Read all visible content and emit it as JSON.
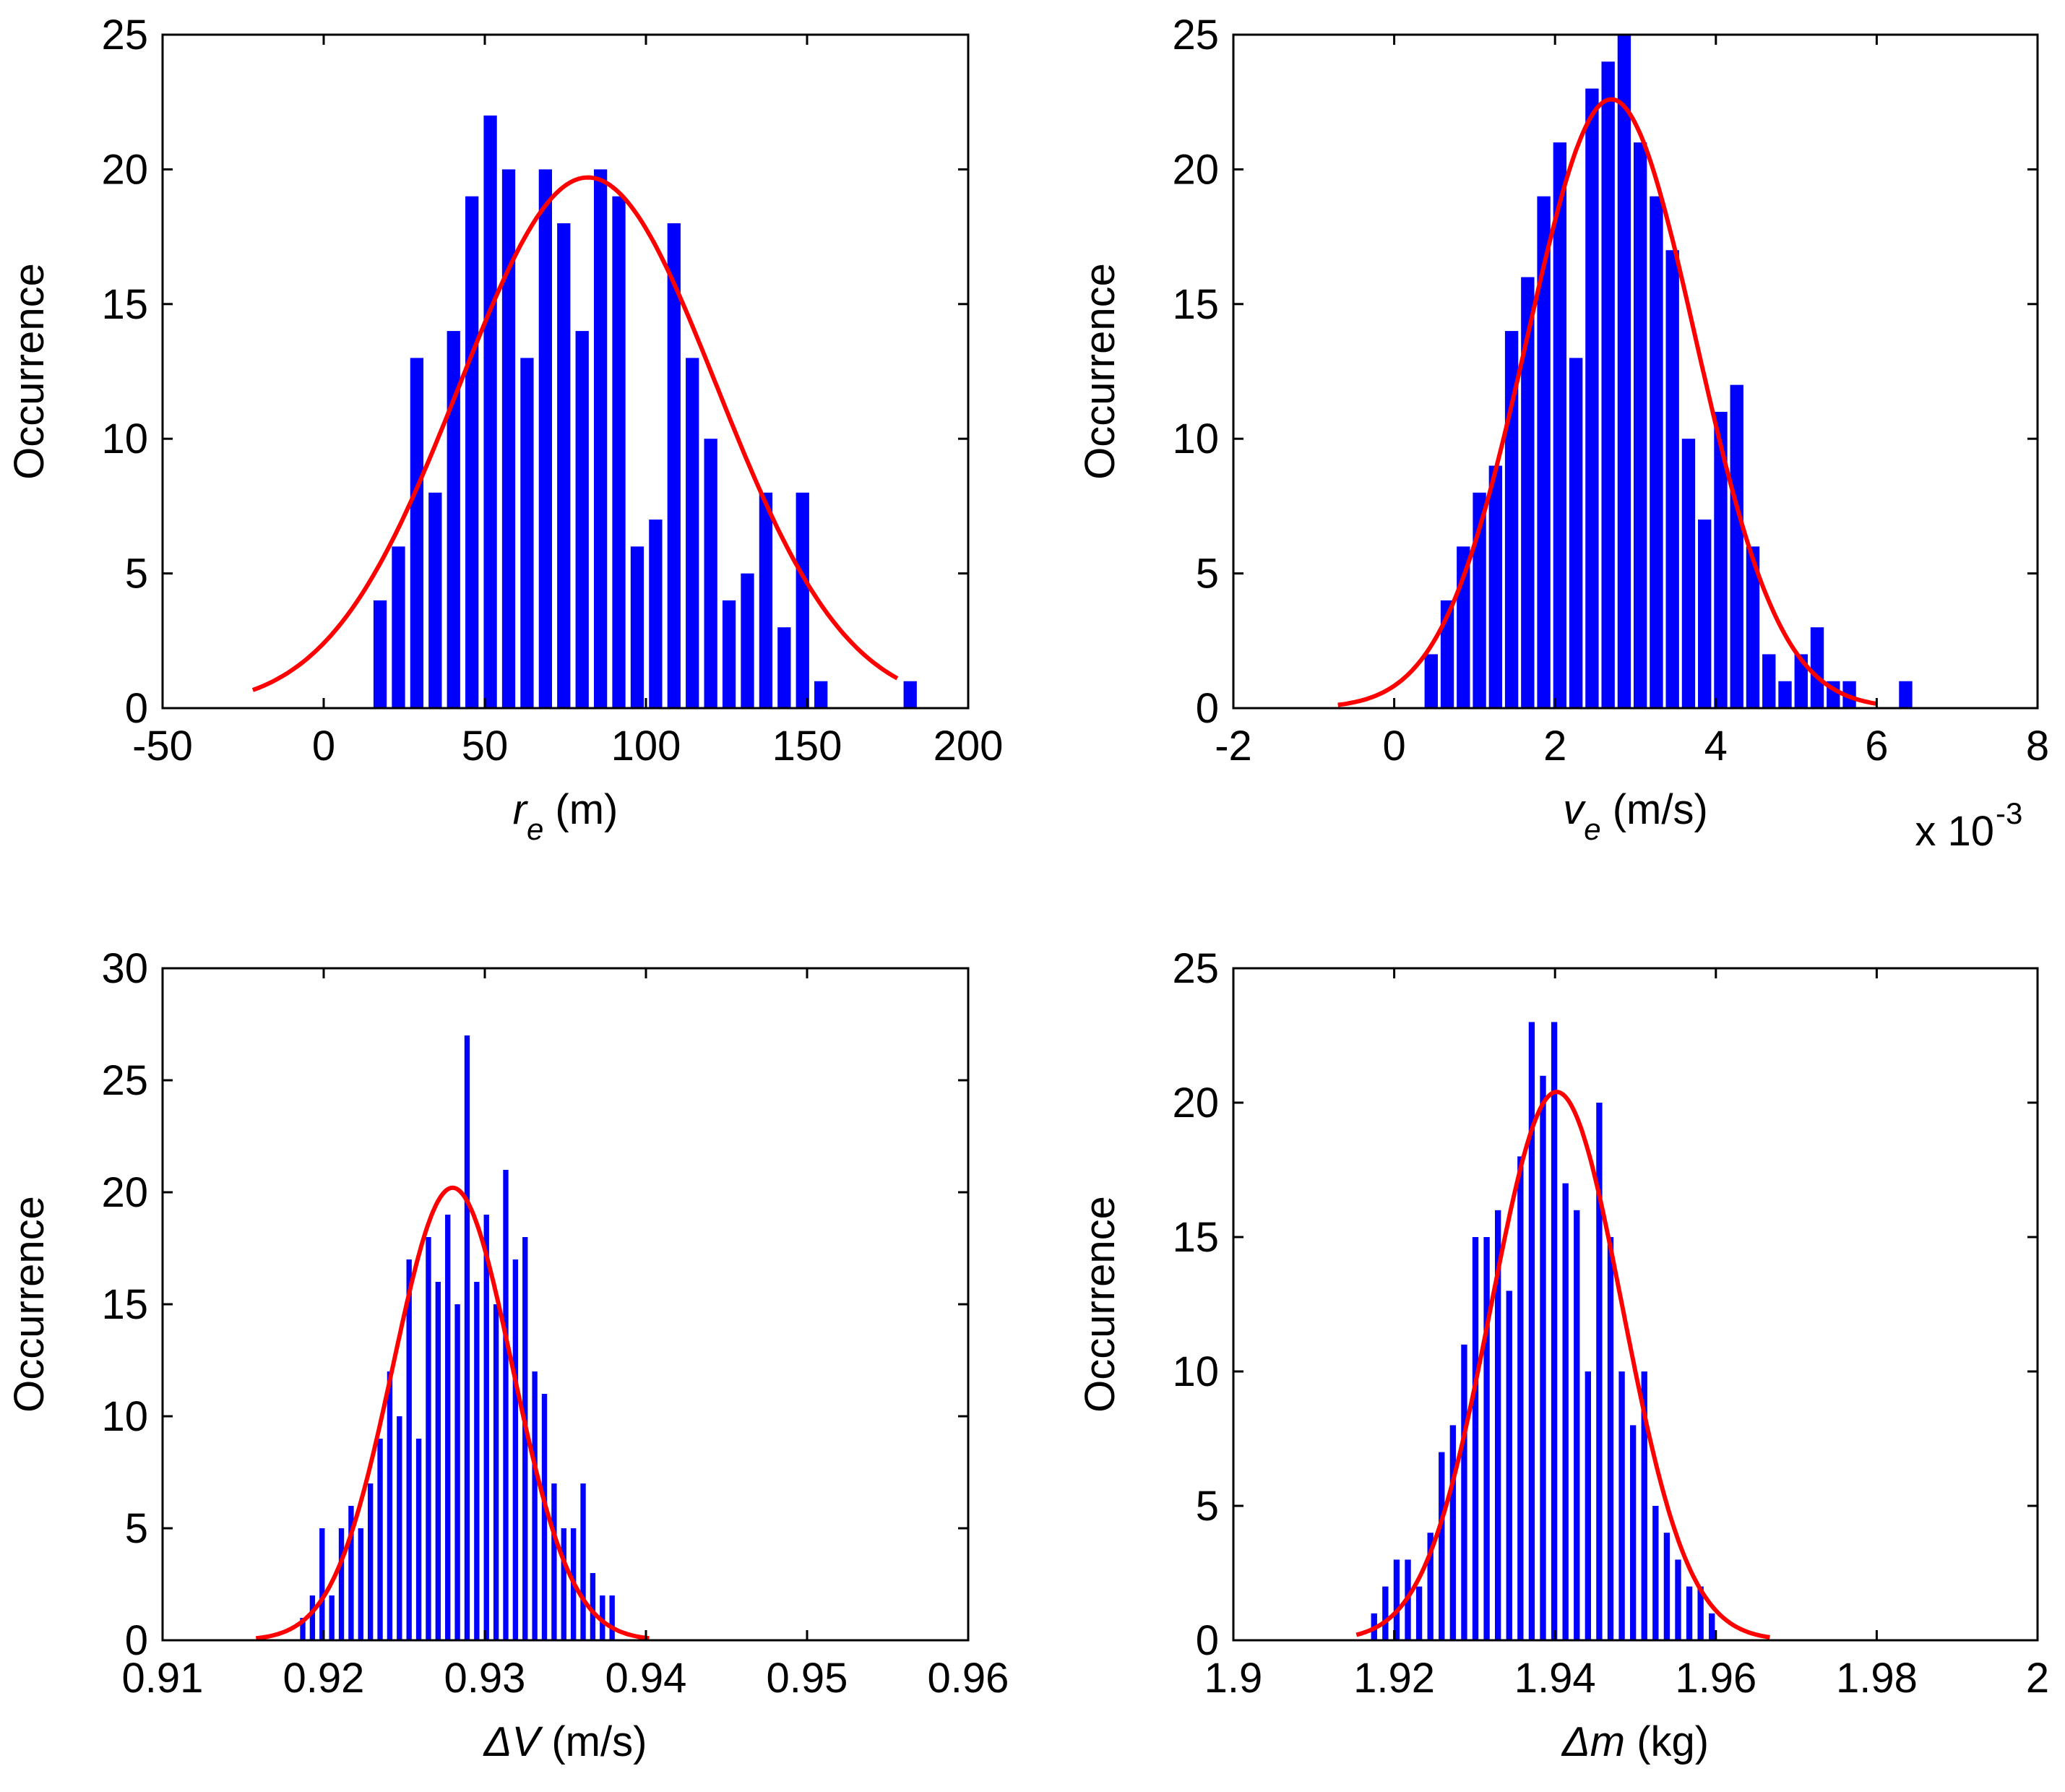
{
  "figure": {
    "bar_color": "#0000ff",
    "fit_color": "#ff0000",
    "axes_color": "#000000",
    "background": "#ffffff"
  },
  "chart_data": [
    {
      "id": "re",
      "type": "bar",
      "title": "",
      "xlabel_main": "r",
      "xlabel_sub": "e",
      "xlabel_rest": " (m)",
      "ylabel": "Occurrence",
      "xlim": [
        -50,
        200
      ],
      "ylim": [
        0,
        25
      ],
      "xticks": [
        -50,
        0,
        50,
        100,
        150,
        200
      ],
      "xtick_labels": [
        "-50",
        "0",
        "50",
        "100",
        "150",
        "200"
      ],
      "yticks": [
        0,
        5,
        10,
        15,
        20,
        25
      ],
      "ytick_labels": [
        "0",
        "5",
        "10",
        "15",
        "20",
        "25"
      ],
      "exponent_label": "",
      "bar_width": 4.1,
      "bar_centers": [
        17.5,
        23.2,
        28.9,
        34.6,
        40.3,
        46.0,
        51.7,
        57.4,
        63.1,
        68.8,
        74.5,
        80.2,
        85.9,
        91.6,
        97.3,
        103.0,
        108.7,
        114.4,
        120.1,
        125.8,
        131.5,
        137.2,
        142.9,
        148.6,
        154.3,
        160.0,
        182.0
      ],
      "bar_values": [
        4,
        6,
        13,
        8,
        14,
        19,
        22,
        20,
        13,
        20,
        18,
        14,
        20,
        19,
        6,
        7,
        18,
        13,
        10,
        4,
        5,
        8,
        3,
        8,
        1,
        0,
        1
      ],
      "fit": {
        "mean": 82,
        "sd": 40,
        "peak": 19.7,
        "xmin": -22,
        "xmax": 178
      }
    },
    {
      "id": "ve",
      "type": "bar",
      "title": "",
      "xlabel_main": "v",
      "xlabel_sub": "e",
      "xlabel_rest": " (m/s)",
      "ylabel": "Occurrence",
      "xlim": [
        -2,
        8
      ],
      "ylim": [
        0,
        25
      ],
      "xticks": [
        -2,
        0,
        2,
        4,
        6,
        8
      ],
      "xtick_labels": [
        "-2",
        "0",
        "2",
        "4",
        "6",
        "8"
      ],
      "yticks": [
        0,
        5,
        10,
        15,
        20,
        25
      ],
      "ytick_labels": [
        "0",
        "5",
        "10",
        "15",
        "20",
        "25"
      ],
      "exponent_label": "x 10",
      "exponent_power": "-3",
      "bar_width": 0.165,
      "bar_centers": [
        0.46,
        0.66,
        0.86,
        1.06,
        1.26,
        1.46,
        1.66,
        1.86,
        2.06,
        2.26,
        2.46,
        2.66,
        2.86,
        3.06,
        3.26,
        3.46,
        3.66,
        3.86,
        4.06,
        4.26,
        4.46,
        4.66,
        4.86,
        5.06,
        5.26,
        5.46,
        5.66,
        6.36
      ],
      "bar_values": [
        2,
        4,
        6,
        8,
        9,
        14,
        16,
        19,
        21,
        13,
        23,
        24,
        25,
        21,
        19,
        17,
        10,
        7,
        11,
        12,
        6,
        2,
        1,
        2,
        3,
        1,
        1,
        1
      ],
      "fit": {
        "mean": 2.7,
        "sd": 1.05,
        "peak": 22.6,
        "xmin": -0.7,
        "xmax": 6.0
      }
    },
    {
      "id": "dV",
      "type": "bar",
      "title": "",
      "xlabel_main": "ΔV",
      "xlabel_sub": "",
      "xlabel_rest": " (m/s)",
      "ylabel": "Occurrence",
      "xlim": [
        0.91,
        0.96
      ],
      "ylim": [
        0,
        30
      ],
      "xticks": [
        0.91,
        0.92,
        0.93,
        0.94,
        0.95,
        0.96
      ],
      "xtick_labels": [
        "0.91",
        "0.92",
        "0.93",
        "0.94",
        "0.95",
        "0.96"
      ],
      "yticks": [
        0,
        5,
        10,
        15,
        20,
        25,
        30
      ],
      "ytick_labels": [
        "0",
        "5",
        "10",
        "15",
        "20",
        "25",
        "30"
      ],
      "exponent_label": "",
      "bar_width": 0.00033,
      "bar_centers": [
        0.9187,
        0.9193,
        0.9199,
        0.9205,
        0.9211,
        0.9217,
        0.9223,
        0.9229,
        0.9235,
        0.9241,
        0.9247,
        0.9253,
        0.9259,
        0.9265,
        0.9271,
        0.9277,
        0.9283,
        0.9289,
        0.9295,
        0.9301,
        0.9307,
        0.9313,
        0.9319,
        0.9325,
        0.9331,
        0.9337,
        0.9343,
        0.9349,
        0.9355,
        0.9361,
        0.9367,
        0.9373,
        0.9379
      ],
      "bar_values": [
        1,
        2,
        5,
        2,
        5,
        6,
        5,
        7,
        9,
        12,
        10,
        17,
        9,
        18,
        16,
        19,
        15,
        27,
        16,
        19,
        15,
        21,
        17,
        18,
        12,
        11,
        7,
        5,
        5,
        7,
        3,
        2,
        2
      ],
      "fit": {
        "mean": 0.928,
        "sd": 0.0037,
        "peak": 20.2,
        "xmin": 0.9158,
        "xmax": 0.9402
      }
    },
    {
      "id": "dm",
      "type": "bar",
      "title": "",
      "xlabel_main": "Δm",
      "xlabel_sub": "",
      "xlabel_rest": " (kg)",
      "ylabel": "Occurrence",
      "xlim": [
        1.9,
        2.0
      ],
      "ylim": [
        0,
        25
      ],
      "xticks": [
        1.9,
        1.92,
        1.94,
        1.96,
        1.98,
        2.0
      ],
      "xtick_labels": [
        "1.9",
        "1.92",
        "1.94",
        "1.96",
        "1.98",
        "2"
      ],
      "yticks": [
        0,
        5,
        10,
        15,
        20,
        25
      ],
      "ytick_labels": [
        "0",
        "5",
        "10",
        "15",
        "20",
        "25"
      ],
      "exponent_label": "",
      "bar_width": 0.00075,
      "bar_centers": [
        1.9175,
        1.9189,
        1.9203,
        1.9217,
        1.9231,
        1.9245,
        1.9259,
        1.9273,
        1.9287,
        1.9301,
        1.9315,
        1.9329,
        1.9343,
        1.9357,
        1.9371,
        1.9385,
        1.9399,
        1.9413,
        1.9427,
        1.9441,
        1.9455,
        1.9469,
        1.9483,
        1.9497,
        1.9511,
        1.9525,
        1.9539,
        1.9553,
        1.9567,
        1.9581,
        1.9595
      ],
      "bar_values": [
        1,
        2,
        3,
        3,
        2,
        4,
        7,
        8,
        11,
        15,
        15,
        16,
        13,
        18,
        23,
        21,
        23,
        17,
        16,
        10,
        20,
        15,
        10,
        8,
        10,
        5,
        4,
        3,
        2,
        2,
        1
      ],
      "fit": {
        "mean": 1.9402,
        "sd": 0.0082,
        "peak": 20.4,
        "xmin": 1.9153,
        "xmax": 1.9667
      }
    }
  ]
}
